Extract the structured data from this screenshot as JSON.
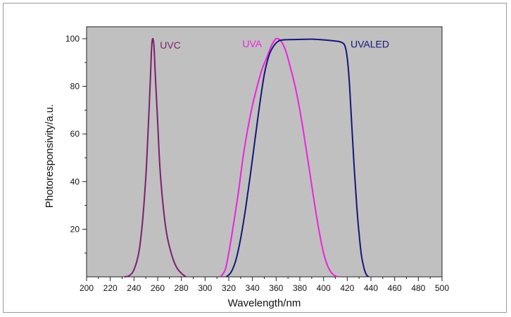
{
  "chart_data": {
    "type": "line",
    "title": "",
    "xlabel": "Wavelength/nm",
    "ylabel": "Photoresponsivity/a.u.",
    "xlim": [
      200,
      500
    ],
    "ylim": [
      0,
      105
    ],
    "x_ticks": [
      200,
      220,
      240,
      260,
      280,
      300,
      320,
      340,
      360,
      380,
      400,
      420,
      440,
      460,
      480,
      500
    ],
    "y_ticks": [
      20,
      40,
      60,
      80,
      100
    ],
    "grid": false,
    "plot_background": "#c0c0c0",
    "legend": "inline labels near curves",
    "series": [
      {
        "name": "UVC",
        "color": "#7b1f6e",
        "points": [
          [
            232,
            0
          ],
          [
            236,
            0.5
          ],
          [
            240,
            3
          ],
          [
            244,
            10
          ],
          [
            247,
            22
          ],
          [
            250,
            42
          ],
          [
            252,
            62
          ],
          [
            254,
            85
          ],
          [
            255,
            97
          ],
          [
            256,
            100
          ],
          [
            257,
            96
          ],
          [
            258,
            85
          ],
          [
            260,
            65
          ],
          [
            262,
            45
          ],
          [
            265,
            28
          ],
          [
            268,
            17
          ],
          [
            272,
            9
          ],
          [
            276,
            4
          ],
          [
            280,
            1.5
          ],
          [
            284,
            0
          ]
        ]
      },
      {
        "name": "UVA",
        "color": "#ee22dd",
        "points": [
          [
            313,
            0
          ],
          [
            317,
            3
          ],
          [
            320,
            10
          ],
          [
            324,
            22
          ],
          [
            328,
            35
          ],
          [
            332,
            50
          ],
          [
            336,
            62
          ],
          [
            340,
            72
          ],
          [
            344,
            80
          ],
          [
            348,
            87
          ],
          [
            352,
            92
          ],
          [
            356,
            97
          ],
          [
            360,
            100
          ],
          [
            364,
            99
          ],
          [
            368,
            95
          ],
          [
            372,
            88
          ],
          [
            376,
            80
          ],
          [
            380,
            70
          ],
          [
            384,
            58
          ],
          [
            388,
            45
          ],
          [
            392,
            32
          ],
          [
            396,
            20
          ],
          [
            400,
            10
          ],
          [
            404,
            4
          ],
          [
            408,
            1
          ],
          [
            412,
            0
          ]
        ]
      },
      {
        "name": "UVALED",
        "color": "#15157a",
        "points": [
          [
            318,
            0
          ],
          [
            322,
            2
          ],
          [
            326,
            7
          ],
          [
            330,
            16
          ],
          [
            334,
            28
          ],
          [
            338,
            42
          ],
          [
            342,
            57
          ],
          [
            346,
            72
          ],
          [
            350,
            85
          ],
          [
            354,
            93
          ],
          [
            358,
            97
          ],
          [
            362,
            99
          ],
          [
            366,
            99.5
          ],
          [
            370,
            99.6
          ],
          [
            380,
            99.7
          ],
          [
            390,
            99.8
          ],
          [
            400,
            99.5
          ],
          [
            410,
            99
          ],
          [
            415,
            98.5
          ],
          [
            418,
            97
          ],
          [
            420,
            92
          ],
          [
            422,
            80
          ],
          [
            424,
            62
          ],
          [
            426,
            45
          ],
          [
            428,
            30
          ],
          [
            430,
            18
          ],
          [
            432,
            9
          ],
          [
            434,
            4
          ],
          [
            436,
            1
          ],
          [
            438,
            0
          ]
        ]
      }
    ]
  }
}
